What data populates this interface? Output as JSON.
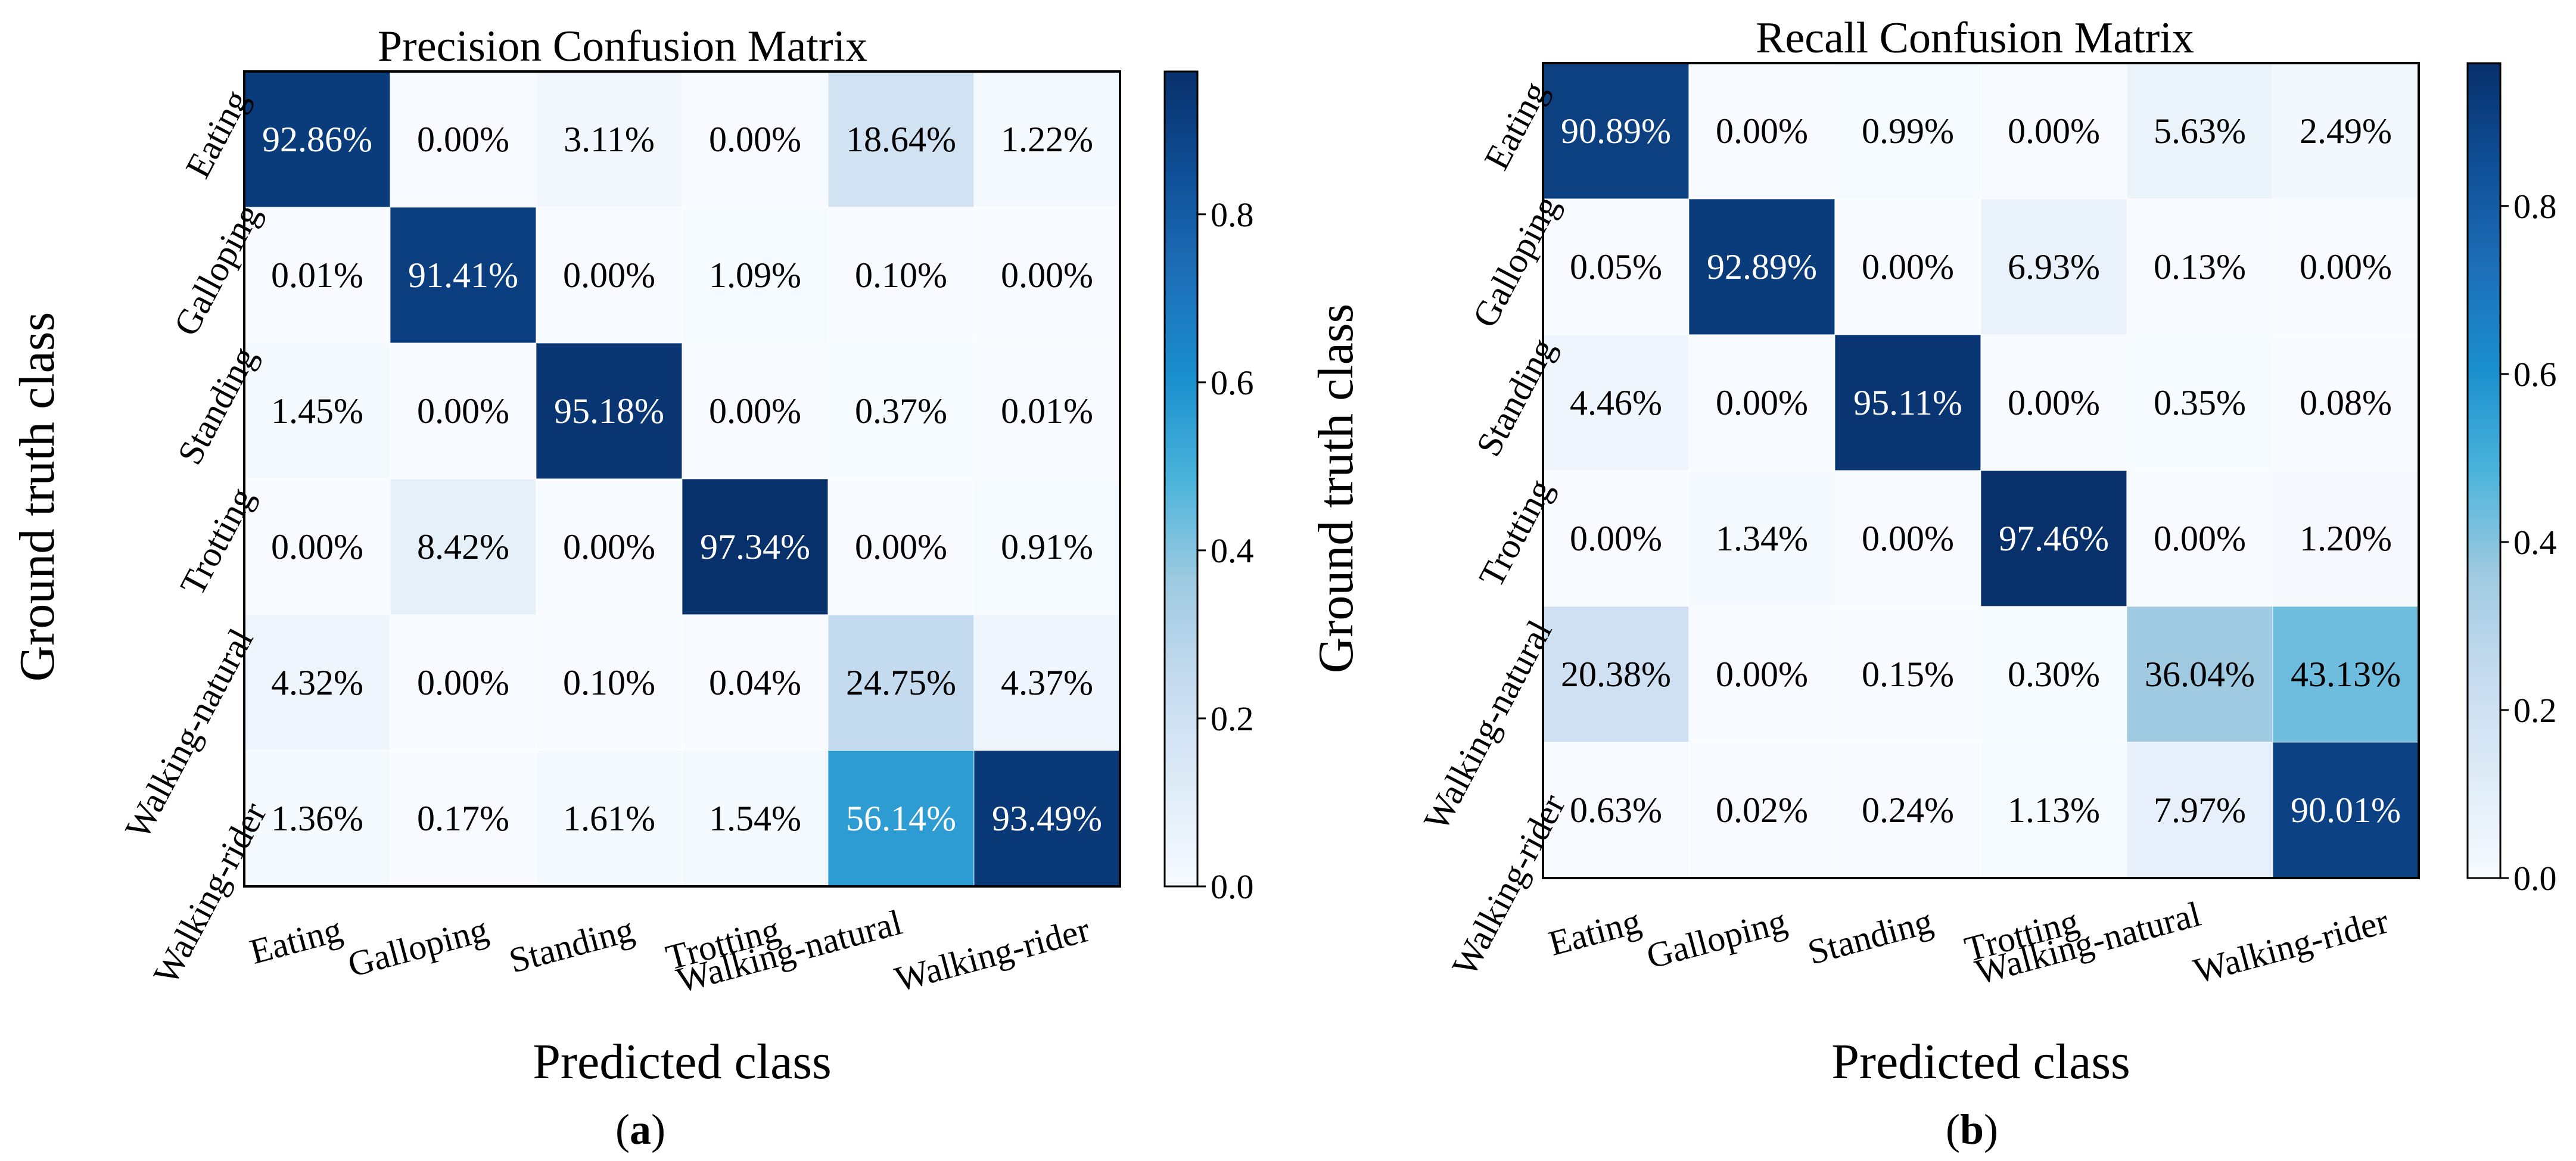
{
  "chart_data": [
    {
      "type": "heatmap",
      "title": "Precision Confusion Matrix",
      "xlabel": "Predicted class",
      "ylabel": "Ground truth class",
      "panel_label": "a",
      "x_categories": [
        "Eating",
        "Galloping",
        "Standing",
        "Trotting",
        "Walking-natural",
        "Walking-rider"
      ],
      "y_categories": [
        "Eating",
        "Galloping",
        "Standing",
        "Trotting",
        "Walking-natural",
        "Walking-rider"
      ],
      "values": [
        [
          0.9286,
          0.0,
          0.0311,
          0.0,
          0.1864,
          0.0122
        ],
        [
          0.0001,
          0.9141,
          0.0,
          0.0109,
          0.001,
          0.0
        ],
        [
          0.0145,
          0.0,
          0.9518,
          0.0,
          0.0037,
          0.0001
        ],
        [
          0.0,
          0.0842,
          0.0,
          0.9734,
          0.0,
          0.0091
        ],
        [
          0.0432,
          0.0,
          0.001,
          0.0004,
          0.2475,
          0.0437
        ],
        [
          0.0136,
          0.0017,
          0.0161,
          0.0154,
          0.5614,
          0.9349
        ]
      ],
      "labels": [
        [
          "92.86%",
          "0.00%",
          "3.11%",
          "0.00%",
          "18.64%",
          "1.22%"
        ],
        [
          "0.01%",
          "91.41%",
          "0.00%",
          "1.09%",
          "0.10%",
          "0.00%"
        ],
        [
          "1.45%",
          "0.00%",
          "95.18%",
          "0.00%",
          "0.37%",
          "0.01%"
        ],
        [
          "0.00%",
          "8.42%",
          "0.00%",
          "97.34%",
          "0.00%",
          "0.91%"
        ],
        [
          "4.32%",
          "0.00%",
          "0.10%",
          "0.04%",
          "24.75%",
          "4.37%"
        ],
        [
          "1.36%",
          "0.17%",
          "1.61%",
          "1.54%",
          "56.14%",
          "93.49%"
        ]
      ],
      "colorbar": {
        "range": [
          0.0,
          0.97
        ],
        "ticks": [
          "0.0",
          "0.2",
          "0.4",
          "0.6",
          "0.8"
        ]
      },
      "colormap": "Blues"
    },
    {
      "type": "heatmap",
      "title": "Recall Confusion Matrix",
      "xlabel": "Predicted class",
      "ylabel": "Ground truth class",
      "panel_label": "b",
      "x_categories": [
        "Eating",
        "Galloping",
        "Standing",
        "Trotting",
        "Walking-natural",
        "Walking-rider"
      ],
      "y_categories": [
        "Eating",
        "Galloping",
        "Standing",
        "Trotting",
        "Walking-natural",
        "Walking-rider"
      ],
      "values": [
        [
          0.9089,
          0.0,
          0.0099,
          0.0,
          0.0563,
          0.0249
        ],
        [
          0.0005,
          0.9289,
          0.0,
          0.0693,
          0.0013,
          0.0
        ],
        [
          0.0446,
          0.0,
          0.9511,
          0.0,
          0.0035,
          0.0008
        ],
        [
          0.0,
          0.0134,
          0.0,
          0.9746,
          0.0,
          0.012
        ],
        [
          0.2038,
          0.0,
          0.0015,
          0.003,
          0.3604,
          0.4313
        ],
        [
          0.0063,
          0.0002,
          0.0024,
          0.0113,
          0.0797,
          0.9001
        ]
      ],
      "labels": [
        [
          "90.89%",
          "0.00%",
          "0.99%",
          "0.00%",
          "5.63%",
          "2.49%"
        ],
        [
          "0.05%",
          "92.89%",
          "0.00%",
          "6.93%",
          "0.13%",
          "0.00%"
        ],
        [
          "4.46%",
          "0.00%",
          "95.11%",
          "0.00%",
          "0.35%",
          "0.08%"
        ],
        [
          "0.00%",
          "1.34%",
          "0.00%",
          "97.46%",
          "0.00%",
          "1.20%"
        ],
        [
          "20.38%",
          "0.00%",
          "0.15%",
          "0.30%",
          "36.04%",
          "43.13%"
        ],
        [
          "0.63%",
          "0.02%",
          "0.24%",
          "1.13%",
          "7.97%",
          "90.01%"
        ]
      ],
      "colorbar": {
        "range": [
          0.0,
          0.97
        ],
        "ticks": [
          "0.0",
          "0.2",
          "0.4",
          "0.6",
          "0.8"
        ]
      },
      "colormap": "Blues"
    }
  ]
}
